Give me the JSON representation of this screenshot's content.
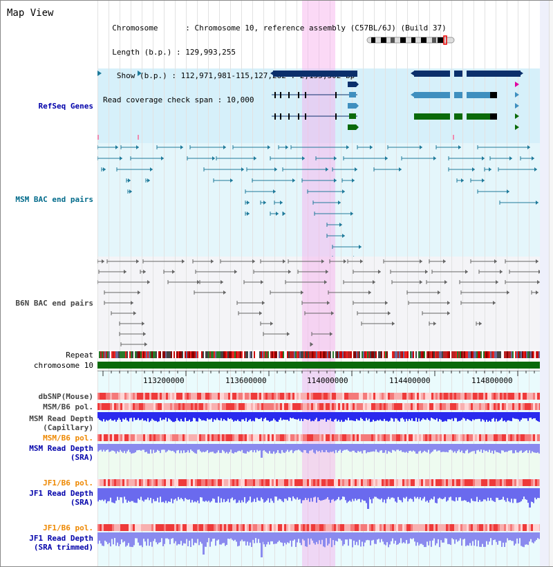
{
  "header": {
    "title": "Map View",
    "info_lines": [
      "  Chromosome      : Chromosome 10, reference assembly (C57BL/6J) (Build 37)",
      "  Length (b.p.) : 129,993,255",
      "   Show (b.p.) : 112,971,981-115,127,282 : 2,155,302 bp",
      "Read coverage check span : 10,000"
    ]
  },
  "tracks": {
    "refseq": "RefSeq Genes",
    "msm_bac": "MSM BAC end pairs",
    "b6n_bac": "B6N BAC end pairs",
    "repeat": "Repeat",
    "chromosome": "chromosome 10",
    "dbsnp": "dbSNP(Mouse)",
    "msm_b6_pol_1": "MSM/B6 pol.",
    "msm_read_depth_cap_1": "MSM Read Depth",
    "msm_read_depth_cap_2": "(Capillary)",
    "msm_b6_pol_2": "MSM/B6 pol.",
    "msm_read_depth_sra_1": "MSM Read Depth",
    "msm_read_depth_sra_2": "(SRA)",
    "jf1_b6_pol_1": "JF1/B6 pol.",
    "jf1_read_depth_sra_1": "JF1 Read Depth",
    "jf1_read_depth_sra_2": "(SRA)",
    "jf1_b6_pol_2": "JF1/B6 pol.",
    "jf1_read_depth_trim_1": "JF1 Read Depth",
    "jf1_read_depth_trim_2": "(SRA trimmed)"
  },
  "axis": {
    "ticks": [
      "113200000",
      "113600000",
      "114000000",
      "114400000",
      "114800000"
    ]
  },
  "colors": {
    "refseq_bg": "#d6f0fa",
    "msm_bg": "#e4f6fb",
    "b6n_bg": "#f3f3f6",
    "highlight": "#f8d2f2",
    "gene_navy": "#0b2f6b",
    "gene_blue": "#3f8fbf",
    "gene_green": "#0a6a0a",
    "msm_line": "#1f7a9a",
    "b6n_line": "#666666",
    "depth_blue": "#2a2aee",
    "depth_light": "#8a8aee",
    "label_navy": "#0000aa",
    "label_teal": "#006a8a",
    "label_gray": "#444444",
    "label_orange": "#ee8800"
  }
}
